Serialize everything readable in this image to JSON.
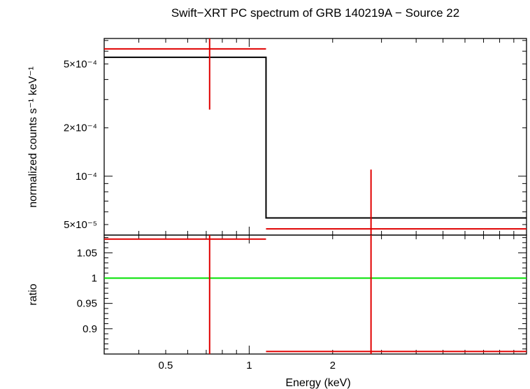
{
  "chart_data": [
    {
      "type": "line",
      "panel": "spectrum",
      "title": "Swift−XRT PC spectrum of GRB 140219A − Source 22",
      "ylabel": "normalized counts s⁻¹ keV⁻¹",
      "xscale": "log",
      "yscale": "log",
      "xlim": [
        0.3,
        10.0
      ],
      "ylim": [
        4.3e-05,
        0.00072
      ],
      "y_ticks": [
        {
          "value": 5e-05,
          "label": "5×10⁻⁵"
        },
        {
          "value": 0.0001,
          "label": "10⁻⁴"
        },
        {
          "value": 0.0002,
          "label": "2×10⁻⁴"
        },
        {
          "value": 0.0005,
          "label": "5×10⁻⁴"
        }
      ],
      "model": {
        "name": "model",
        "color": "#000000",
        "steps": [
          {
            "x0": 0.3,
            "x1": 1.15,
            "y": 0.00055
          },
          {
            "x0": 1.15,
            "x1": 10.0,
            "y": 5.5e-05
          }
        ]
      },
      "data": {
        "name": "data",
        "color": "#e00000",
        "points": [
          {
            "x": 0.72,
            "xlo": 0.3,
            "xhi": 1.15,
            "y": 0.00062,
            "ylo": 0.00026,
            "yhi": 0.00072
          },
          {
            "x": 2.75,
            "xlo": 1.15,
            "xhi": 10.0,
            "y": 4.7e-05,
            "ylo": 4.3e-05,
            "yhi": 0.00011
          }
        ]
      }
    },
    {
      "type": "line",
      "panel": "ratio",
      "xlabel": "Energy (keV)",
      "ylabel": "ratio",
      "xscale": "log",
      "xlim": [
        0.3,
        10.0
      ],
      "ylim": [
        0.85,
        1.085
      ],
      "x_ticks": [
        {
          "value": 0.5,
          "label": "0.5"
        },
        {
          "value": 1,
          "label": "1"
        },
        {
          "value": 2,
          "label": "2"
        }
      ],
      "y_ticks": [
        {
          "value": 0.9,
          "label": "0.9"
        },
        {
          "value": 0.95,
          "label": "0.95"
        },
        {
          "value": 1.0,
          "label": "1"
        },
        {
          "value": 1.05,
          "label": "1.05"
        }
      ],
      "reference_line": {
        "y": 1.0,
        "color": "#00e000"
      },
      "data": {
        "name": "data",
        "color": "#e00000",
        "points": [
          {
            "x": 0.72,
            "xlo": 0.3,
            "xhi": 1.15,
            "y": 1.077,
            "ylo": 0.85,
            "yhi": 1.085
          },
          {
            "x": 2.75,
            "xlo": 1.15,
            "xhi": 10.0,
            "y": 0.855,
            "ylo": 0.85,
            "yhi": 1.085
          }
        ]
      }
    }
  ]
}
